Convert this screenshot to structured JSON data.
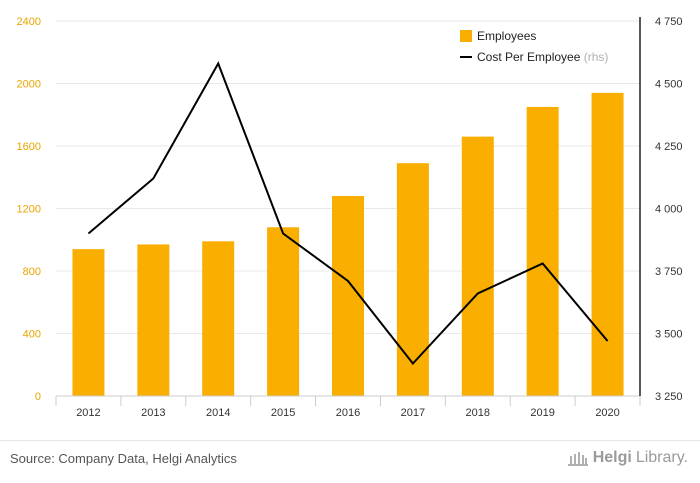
{
  "chart_data": {
    "type": "bar+line",
    "categories": [
      "2012",
      "2013",
      "2014",
      "2015",
      "2016",
      "2017",
      "2018",
      "2019",
      "2020"
    ],
    "series": [
      {
        "name": "Employees",
        "kind": "bar",
        "axis": "left",
        "color": "#f9ae00",
        "values": [
          940,
          970,
          990,
          1080,
          1280,
          1490,
          1660,
          1850,
          1940
        ]
      },
      {
        "name": "Cost Per Employee",
        "name_suffix": "(rhs)",
        "kind": "line",
        "axis": "right",
        "color": "#000000",
        "values": [
          3900,
          4120,
          4580,
          3900,
          3710,
          3380,
          3660,
          3780,
          3470
        ]
      }
    ],
    "y_left": {
      "min": 0,
      "max": 2400,
      "ticks": [
        0,
        400,
        800,
        1200,
        1600,
        2000,
        2400
      ],
      "tick_labels": [
        "0",
        "400",
        "800",
        "1200",
        "1600",
        "2000",
        "2400"
      ]
    },
    "y_right": {
      "min": 3250,
      "max": 4750,
      "ticks": [
        3250,
        3500,
        3750,
        4000,
        4250,
        4500,
        4750
      ],
      "tick_labels": [
        "3 250",
        "3 500",
        "3 750",
        "4 000",
        "4 250",
        "4 500",
        "4 750"
      ]
    },
    "grid": true,
    "legend_position": "top-right"
  },
  "footer": {
    "source": "Source: Company Data, Helgi Analytics",
    "brand_bold": "Helgi",
    "brand_light": "Library."
  }
}
